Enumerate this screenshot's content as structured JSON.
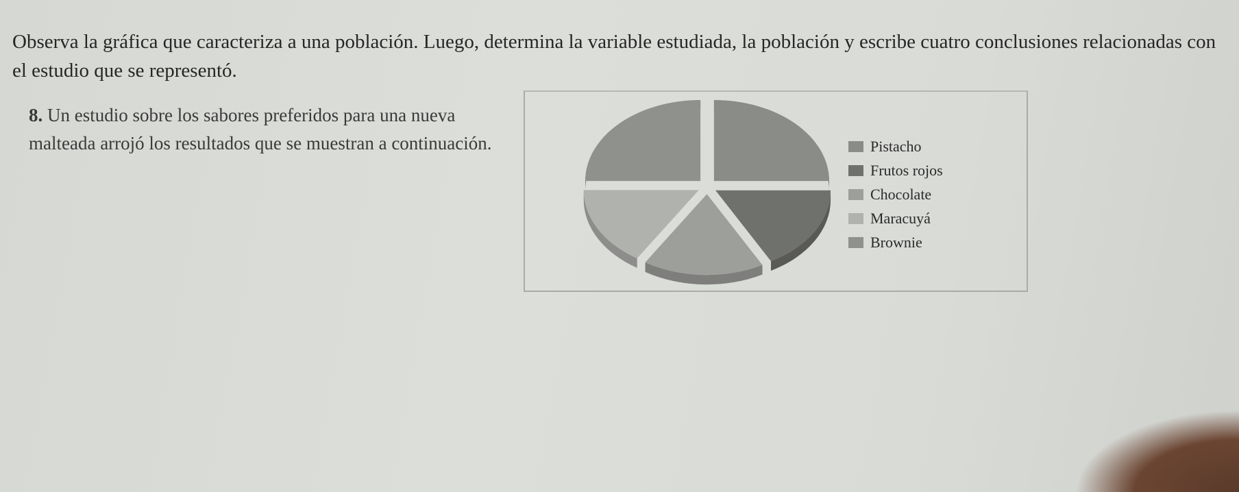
{
  "instruction": "Observa la gráfica que caracteriza a una población. Luego, determina la variable estudiada, la población y escribe cuatro conclusiones relacionadas con el estudio que se representó.",
  "question": {
    "number": "8.",
    "text": "Un estudio sobre los sabores preferidos para una nueva malteada arrojó los resultados que se muestran a continuación."
  },
  "chart_data": {
    "type": "pie",
    "style": "3d-exploded",
    "legend_position": "right",
    "categories": [
      "Pistacho",
      "Frutos rojos",
      "Chocolate",
      "Maracuyá",
      "Brownie"
    ],
    "values": [
      25,
      17,
      17,
      16,
      25
    ],
    "colors": [
      "#8a8c88",
      "#6f716d",
      "#9d9f9b",
      "#b0b2ae",
      "#8f918d"
    ]
  }
}
